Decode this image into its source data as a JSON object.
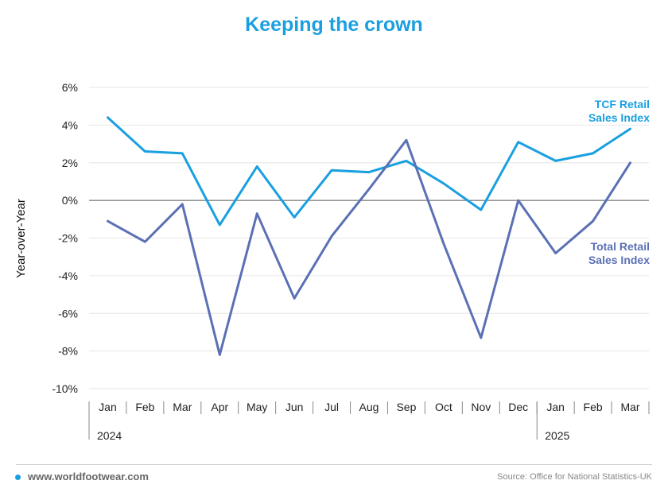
{
  "chart_data": {
    "type": "line",
    "title": "Keeping the crown",
    "ylabel": "Year-over-Year",
    "xlabel": "",
    "categories": [
      "Jan",
      "Feb",
      "Mar",
      "Apr",
      "May",
      "Jun",
      "Jul",
      "Aug",
      "Sep",
      "Oct",
      "Nov",
      "Dec",
      "Jan",
      "Feb",
      "Mar"
    ],
    "year_groups": [
      {
        "label": "2024",
        "start": 0,
        "end": 11
      },
      {
        "label": "2025",
        "start": 12,
        "end": 14
      }
    ],
    "ylim": [
      -10,
      6
    ],
    "yticks": [
      6,
      4,
      2,
      0,
      -2,
      -4,
      -6,
      -8,
      -10
    ],
    "ytick_labels": [
      "6%",
      "4%",
      "2%",
      "0%",
      "-2%",
      "-4%",
      "-6%",
      "-8%",
      "-10%"
    ],
    "grid": true,
    "series": [
      {
        "name": "TCF Retail Sales Index",
        "color": "#1a9fe0",
        "values": [
          4.4,
          2.6,
          2.5,
          -1.3,
          1.8,
          -0.9,
          1.6,
          1.5,
          2.1,
          0.9,
          -0.5,
          3.1,
          2.1,
          2.5,
          3.8
        ]
      },
      {
        "name": "Total Retail Sales Index",
        "color": "#5b70b5",
        "values": [
          -1.1,
          -2.2,
          -0.2,
          -8.2,
          -0.7,
          -5.2,
          -1.9,
          0.6,
          3.2,
          -2.3,
          -7.3,
          0.0,
          -2.8,
          -1.1,
          2.0
        ]
      }
    ],
    "series_labels": [
      {
        "lines": [
          "TCF Retail",
          "Sales Index"
        ],
        "color": "#1a9fe0"
      },
      {
        "lines": [
          "Total Retail",
          "Sales Index"
        ],
        "color": "#5b70b5"
      }
    ]
  },
  "footer": {
    "website": "www.worldfootwear.com",
    "source": "Source: Office for National Statistics-UK"
  }
}
